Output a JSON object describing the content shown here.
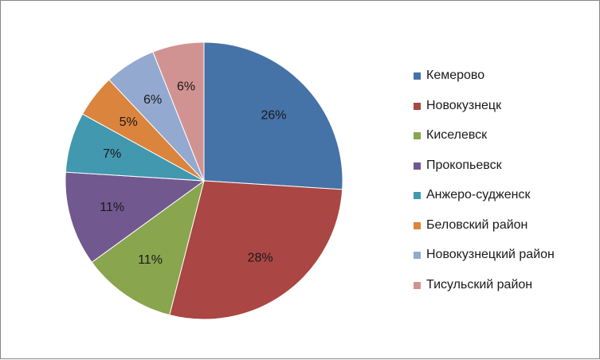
{
  "chart_data": {
    "type": "pie",
    "categories": [
      "Кемерово",
      "Новокузнецк",
      "Киселевск",
      "Прокопьевск",
      "Анжеро-судженск",
      "Беловский район",
      "Новокузнецкий район",
      "Тисульский район"
    ],
    "values": [
      26,
      28,
      11,
      11,
      7,
      5,
      6,
      6
    ],
    "data_labels": [
      "26%",
      "28%",
      "11%",
      "11%",
      "7%",
      "5%",
      "6%",
      "6%"
    ],
    "colors": [
      "#4572A7",
      "#AA4643",
      "#89A54E",
      "#71588F",
      "#4198AF",
      "#DB843D",
      "#93A9CF",
      "#D19392"
    ],
    "legend_position": "right"
  }
}
